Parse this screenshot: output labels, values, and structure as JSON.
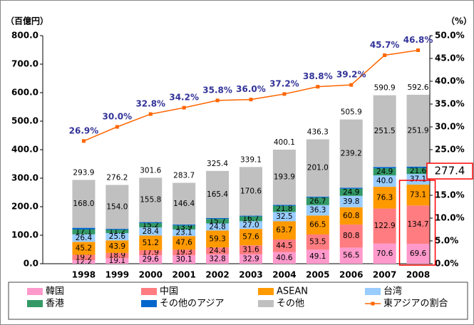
{
  "chart_data": {
    "type": "stacked_bar_line",
    "y_axis_label": "（百億円）",
    "y2_axis_label": "（%）",
    "categories": [
      "1998",
      "1999",
      "2000",
      "2001",
      "2002",
      "2003",
      "2004",
      "2005",
      "2006",
      "2007",
      "2008"
    ],
    "series": [
      {
        "name": "韓国",
        "color": "#ff99cc",
        "values": [
          12.2,
          19.1,
          29.6,
          30.1,
          32.8,
          32.9,
          40.6,
          49.1,
          56.5,
          70.6,
          69.6
        ],
        "value_labels": [
          "12.2",
          "19.1",
          "29.6",
          "30.1",
          "32.8",
          "32.9",
          "40.6",
          "49.1",
          "56.5",
          "70.6",
          "69.6"
        ]
      },
      {
        "name": "中国",
        "color": "#ff7c80",
        "values": [
          19.2,
          18.9,
          17.9,
          19.3,
          24.4,
          31.6,
          44.5,
          53.5,
          80.8,
          122.9,
          134.7
        ],
        "value_labels": [
          "19.2",
          "18.9",
          "17.9",
          "19.3",
          "24.4",
          "31.6",
          "44.5",
          "53.5",
          "80.8",
          "122.9",
          "134.7"
        ]
      },
      {
        "name": "ASEAN",
        "color": "#ff9900",
        "values": [
          45.2,
          43.9,
          51.2,
          47.6,
          59.3,
          57.6,
          63.7,
          66.5,
          60.8,
          76.3,
          73.1
        ],
        "value_labels": [
          "45.2",
          "43.9",
          "51.2",
          "47.6",
          "59.3",
          "57.6",
          "63.7",
          "66.5",
          "60.8",
          "76.3",
          "73.1"
        ]
      },
      {
        "name": "台湾",
        "color": "#99ccff",
        "values": [
          26.4,
          25.6,
          28.4,
          23.1,
          24.8,
          27.0,
          32.5,
          36.3,
          39.8,
          40.0,
          37.1
        ],
        "value_labels": [
          "26.4",
          "25.6",
          "28.4",
          "23.1",
          "24.8",
          "27.0",
          "32.5",
          "36.3",
          "39.8",
          "40.0",
          "37.1"
        ]
      },
      {
        "name": "香港",
        "color": "#339966",
        "values": [
          17.1,
          11.2,
          15.2,
          13.9,
          15.7,
          16.7,
          21.8,
          26.7,
          24.9,
          24.9,
          21.6
        ],
        "value_labels": [
          "17.1",
          "11.2",
          "15.2",
          "13.9",
          "15.7",
          "16.7",
          "21.8",
          "26.7",
          "24.9",
          "24.9",
          "21.6"
        ]
      },
      {
        "name": "その他のアジア",
        "color": "#0066cc",
        "values": [
          5.8,
          3.5,
          3.5,
          3.3,
          3.0,
          2.7,
          3.1,
          3.2,
          3.9,
          4.7,
          4.6
        ]
      },
      {
        "name": "その他",
        "color": "#c0c0c0",
        "values": [
          168.0,
          154.0,
          155.8,
          146.4,
          165.4,
          170.6,
          193.9,
          201.0,
          239.2,
          251.5,
          251.9
        ],
        "value_labels": [
          "168.0",
          "154.0",
          "155.8",
          "146.4",
          "165.4",
          "170.6",
          "193.9",
          "201.0",
          "239.2",
          "251.5",
          "251.9"
        ]
      },
      {
        "name": "東アジアの割合",
        "color": "#ff6600",
        "axis": "y2",
        "type": "line",
        "label_color": "#333399",
        "values": [
          26.9,
          30.0,
          32.8,
          34.2,
          35.8,
          36.0,
          37.2,
          38.8,
          39.2,
          45.7,
          46.8
        ],
        "value_labels": [
          "26.9%",
          "30.0%",
          "32.8%",
          "34.2%",
          "35.8%",
          "36.0%",
          "37.2%",
          "38.8%",
          "39.2%",
          "45.7%",
          "46.8%"
        ]
      }
    ],
    "total_labels": [
      "293.9",
      "276.2",
      "301.6",
      "283.7",
      "325.4",
      "339.1",
      "400.1",
      "436.3",
      "505.9",
      "590.9",
      "592.6"
    ],
    "callout": "277.4",
    "ylim": [
      0,
      800
    ],
    "yticks": [
      {
        "value": 0,
        "label": "0.0"
      },
      {
        "value": 100,
        "label": "100.0"
      },
      {
        "value": 200,
        "label": "200.0"
      },
      {
        "value": 300,
        "label": "300.0"
      },
      {
        "value": 400,
        "label": "400.0"
      },
      {
        "value": 500,
        "label": "500.0"
      },
      {
        "value": 600,
        "label": "600.0"
      },
      {
        "value": 700,
        "label": "700.0"
      },
      {
        "value": 800,
        "label": "800.0"
      }
    ],
    "y2lim": [
      0,
      50
    ],
    "y2ticks": [
      {
        "value": 0,
        "label": "0.0%"
      },
      {
        "value": 5,
        "label": "5.0%"
      },
      {
        "value": 10,
        "label": "10.0%"
      },
      {
        "value": 15,
        "label": "15.0%"
      },
      {
        "value": 20,
        "label": "20.0%"
      },
      {
        "value": 25,
        "label": "25.0%"
      },
      {
        "value": 30,
        "label": "30.0%"
      },
      {
        "value": 35,
        "label": "35.0%"
      },
      {
        "value": 40,
        "label": "40.0%"
      },
      {
        "value": 45,
        "label": "45.0%"
      },
      {
        "value": 50,
        "label": "50.0%"
      }
    ],
    "grid": false
  }
}
